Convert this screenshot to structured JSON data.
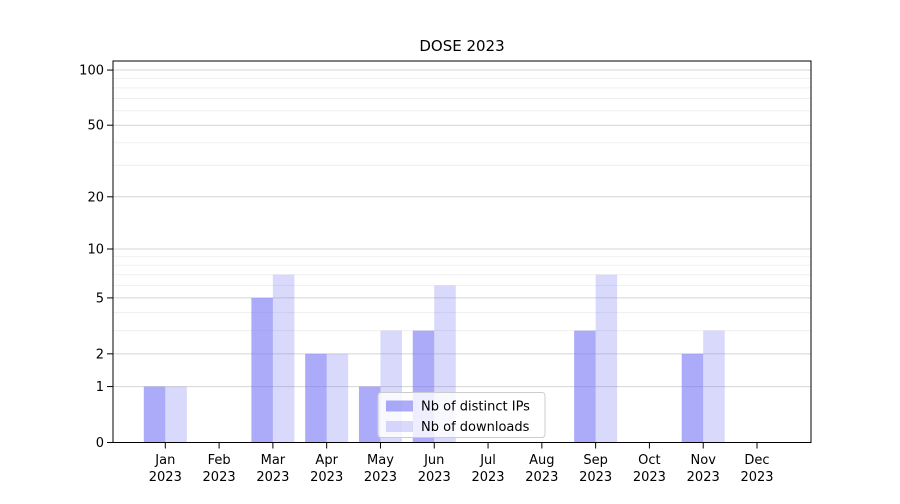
{
  "title": "DOSE 2023",
  "chart_data": {
    "type": "bar",
    "title": "DOSE 2023",
    "categories": [
      "Jan 2023",
      "Feb 2023",
      "Mar 2023",
      "Apr 2023",
      "May 2023",
      "Jun 2023",
      "Jul 2023",
      "Aug 2023",
      "Sep 2023",
      "Oct 2023",
      "Nov 2023",
      "Dec 2023"
    ],
    "x_tick_line1": [
      "Jan",
      "Feb",
      "Mar",
      "Apr",
      "May",
      "Jun",
      "Jul",
      "Aug",
      "Sep",
      "Oct",
      "Nov",
      "Dec"
    ],
    "x_tick_line2": "2023",
    "series": [
      {
        "name": "Nb of distinct IPs",
        "color": "rgba(120,120,245,0.62)",
        "color_on_white": "#aaaaf9",
        "values": [
          1,
          0,
          5,
          2,
          1,
          3,
          0,
          0,
          3,
          0,
          2,
          0
        ]
      },
      {
        "name": "Nb of downloads",
        "color": "rgba(120,120,245,0.28)",
        "color_on_white": "#d9d9fa",
        "values": [
          1,
          0,
          7,
          2,
          3,
          6,
          0,
          0,
          7,
          0,
          3,
          0
        ]
      }
    ],
    "y_axis": {
      "scale": "log10(1+x)",
      "tick_labels": [
        0,
        1,
        2,
        5,
        10,
        20,
        50,
        100
      ],
      "minor_gridlines": [
        3,
        4,
        6,
        7,
        8,
        9,
        30,
        40,
        60,
        70,
        80,
        90
      ],
      "range": [
        0,
        112
      ]
    },
    "x_axis": {
      "year": "2023"
    },
    "grid": {
      "major_color": "#d4d4d4",
      "minor_color": "#efefef"
    },
    "legend": {
      "entries": [
        "Nb of distinct IPs",
        "Nb of downloads"
      ],
      "background": "rgba(255,255,255,0.8)",
      "border_color": "#cccccc"
    },
    "frame": {
      "background": "#ffffff",
      "spine_color": "#000000",
      "text_color": "#000000"
    }
  }
}
